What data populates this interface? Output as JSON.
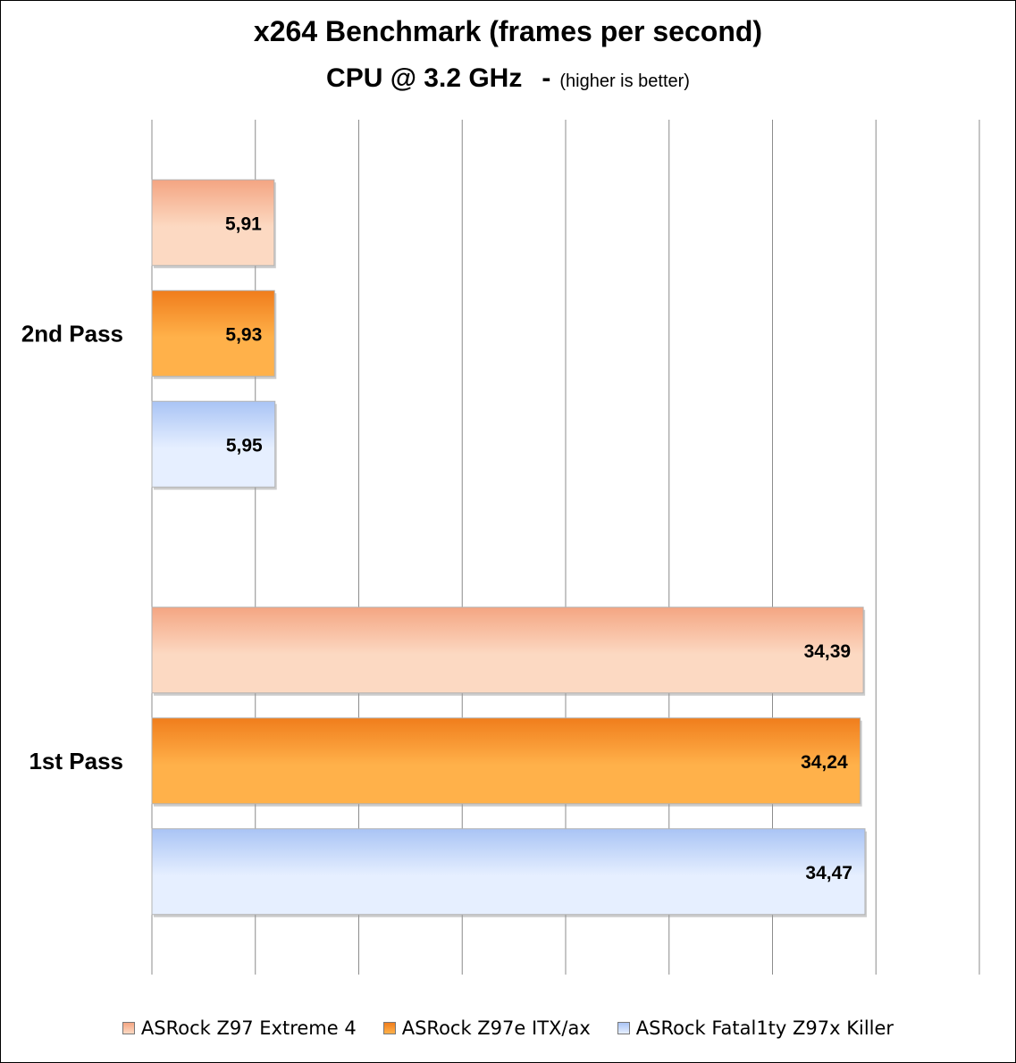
{
  "chart_data": {
    "type": "bar",
    "orientation": "horizontal",
    "title": "x264 Benchmark (frames per second)",
    "subtitle_main": "CPU @ 3.2 GHz",
    "subtitle_separator": "-",
    "subtitle_note": "(higher is better)",
    "categories": [
      "2nd Pass",
      "1st Pass"
    ],
    "series": [
      {
        "name": "ASRock Z97 Extreme 4",
        "values": [
          5.91,
          34.39
        ],
        "labels": [
          "5,91",
          "34,39"
        ],
        "color": "#f4a582",
        "color_light": "#fcd9c2"
      },
      {
        "name": "ASRock Z97e ITX/ax",
        "values": [
          5.93,
          34.24
        ],
        "labels": [
          "5,93",
          "34,24"
        ],
        "color": "#f07d1c",
        "color_light": "#ffb14a"
      },
      {
        "name": "ASRock Fatal1ty Z97x Killer",
        "values": [
          5.95,
          34.47
        ],
        "labels": [
          "5,95",
          "34,47"
        ],
        "color": "#a9c4f5",
        "color_light": "#e6efff"
      }
    ],
    "xlim": [
      0,
      40
    ],
    "grid": true,
    "legend_position": "bottom"
  }
}
